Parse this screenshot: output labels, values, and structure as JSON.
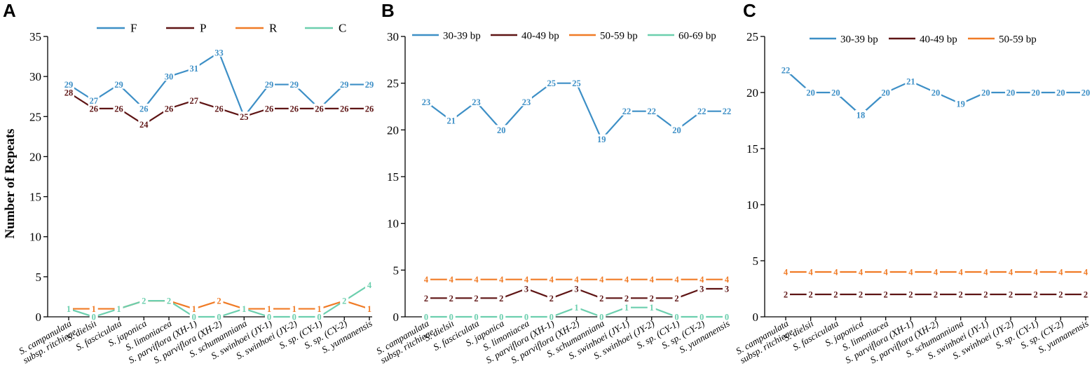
{
  "chart_data": [
    {
      "type": "line",
      "panel": "A",
      "title": "",
      "ylabel": "Number of Repeats",
      "xlabel": "",
      "ylim": [
        0,
        35
      ],
      "yticks": [
        0,
        5,
        10,
        15,
        20,
        25,
        30,
        35
      ],
      "categories": [
        "S. campanulata subsp. ritchieae",
        "S. dielsii",
        "S. fasciculata",
        "S. japonica",
        "S. limoniacea",
        "S. parviflora (XH-1)",
        "S. parviflora (XH-2)",
        "S. schumanniana",
        "S. swinhoei (JY-1)",
        "S. swinhoei (JY-2)",
        "S. sp. (CY-1)",
        "S. sp. (CY-2)",
        "S. yunnanensis"
      ],
      "legend_position": "top-center",
      "series": [
        {
          "name": "F",
          "color": "#3d8fc6",
          "values": [
            29,
            27,
            29,
            26,
            30,
            31,
            33,
            25,
            29,
            29,
            26,
            29,
            29
          ]
        },
        {
          "name": "P",
          "color": "#5e1414",
          "values": [
            28,
            26,
            26,
            24,
            26,
            27,
            26,
            25,
            26,
            26,
            26,
            26,
            26
          ]
        },
        {
          "name": "R",
          "color": "#f07b26",
          "values": [
            1,
            1,
            1,
            2,
            2,
            1,
            2,
            1,
            1,
            1,
            1,
            2,
            1
          ]
        },
        {
          "name": "C",
          "color": "#6ccfae",
          "values": [
            1,
            0,
            1,
            2,
            2,
            0,
            0,
            1,
            0,
            0,
            0,
            2,
            4
          ]
        }
      ]
    },
    {
      "type": "line",
      "panel": "B",
      "title": "",
      "ylabel": "",
      "xlabel": "",
      "ylim": [
        0,
        30
      ],
      "yticks": [
        0,
        5,
        10,
        15,
        20,
        25,
        30
      ],
      "categories": [
        "S. campanulata subsp. ritchieae",
        "S. dielsii",
        "S. fasciculata",
        "S. japonica",
        "S. limoniacea",
        "S. parviflora (XH-1)",
        "S. parviflora (XH-2)",
        "S. schumanniana",
        "S. swinhoei (JY-1)",
        "S. swinhoei (JY-2)",
        "S. sp. (CY-1)",
        "S. sp. (CY-2)",
        "S. yunnanensis"
      ],
      "legend_position": "top-center",
      "series": [
        {
          "name": "30-39 bp",
          "color": "#3d8fc6",
          "values": [
            23,
            21,
            23,
            20,
            23,
            25,
            25,
            19,
            22,
            22,
            20,
            22,
            22
          ]
        },
        {
          "name": "40-49 bp",
          "color": "#5e1414",
          "values": [
            2,
            2,
            2,
            2,
            3,
            2,
            3,
            2,
            2,
            2,
            2,
            3,
            3
          ]
        },
        {
          "name": "50-59 bp",
          "color": "#f07b26",
          "values": [
            4,
            4,
            4,
            4,
            4,
            4,
            4,
            4,
            4,
            4,
            4,
            4,
            4
          ]
        },
        {
          "name": "60-69 bp",
          "color": "#6ccfae",
          "values": [
            0,
            0,
            0,
            0,
            0,
            0,
            1,
            0,
            1,
            1,
            0,
            0,
            0
          ]
        }
      ]
    },
    {
      "type": "line",
      "panel": "C",
      "title": "",
      "ylabel": "",
      "xlabel": "",
      "ylim": [
        0,
        25
      ],
      "yticks": [
        0,
        5,
        10,
        15,
        20,
        25
      ],
      "categories": [
        "S. campanulata subsp. ritchieae",
        "S. dielsii",
        "S. fasciculata",
        "S. japonica",
        "S. limoniacea",
        "S. parviflora (XH-1)",
        "S. parviflora (XH-2)",
        "S. schumanniana",
        "S. swinhoei (JY-1)",
        "S. swinhoei (JY-2)",
        "S. sp. (CY-1)",
        "S. sp. (CY-2)",
        "S. yunnanensis"
      ],
      "legend_position": "top-center",
      "series": [
        {
          "name": "30-39 bp",
          "color": "#3d8fc6",
          "values": [
            22,
            20,
            20,
            18,
            20,
            21,
            20,
            19,
            20,
            20,
            20,
            20,
            20
          ]
        },
        {
          "name": "40-49 bp",
          "color": "#5e1414",
          "values": [
            2,
            2,
            2,
            2,
            2,
            2,
            2,
            2,
            2,
            2,
            2,
            2,
            2
          ]
        },
        {
          "name": "50-59 bp",
          "color": "#f07b26",
          "values": [
            4,
            4,
            4,
            4,
            4,
            4,
            4,
            4,
            4,
            4,
            4,
            4,
            4
          ]
        }
      ]
    }
  ]
}
